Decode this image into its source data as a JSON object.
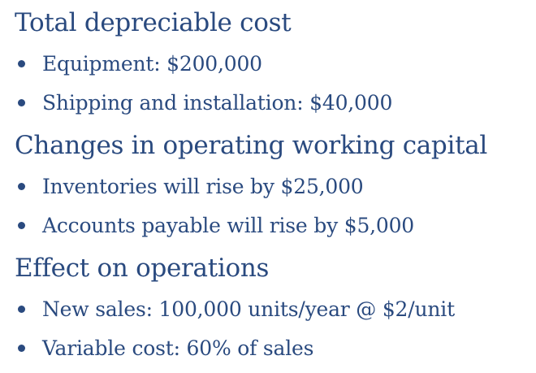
{
  "sections": [
    {
      "heading": "Total depreciable cost",
      "bullets": [
        "Equipment: $200,000",
        "Shipping and installation: $40,000"
      ]
    },
    {
      "heading": "Changes in operating working capital",
      "bullets": [
        "Inventories will rise by $25,000",
        "Accounts payable will rise by $5,000"
      ]
    },
    {
      "heading": "Effect on operations",
      "bullets": [
        "New sales: 100,000 units/year @ $2/unit",
        "Variable cost: 60% of sales"
      ]
    }
  ],
  "colors": {
    "text": "#2a4a7f",
    "background": "#ffffff"
  }
}
